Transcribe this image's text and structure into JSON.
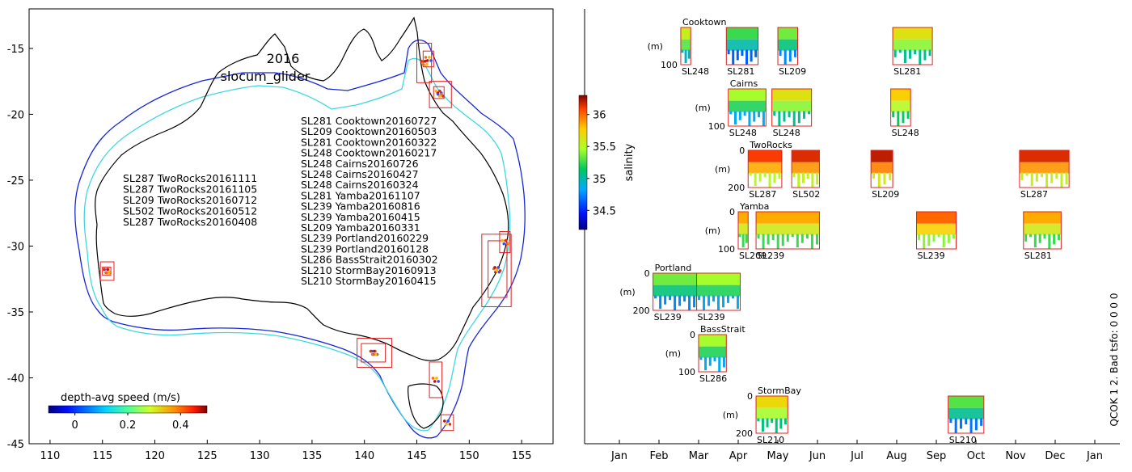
{
  "chart_data": [
    {
      "type": "scatter",
      "title": "2016",
      "subtitle": "slocum_glider",
      "xlim": [
        108,
        158
      ],
      "ylim": [
        -45,
        -12
      ],
      "x_ticks": [
        "110",
        "115",
        "120",
        "125",
        "130",
        "135",
        "140",
        "145",
        "150",
        "155"
      ],
      "y_ticks": [
        "-15",
        "-20",
        "-25",
        "-30",
        "-35",
        "-40",
        "-45"
      ],
      "west_deployments": [
        "SL287 TwoRocks20161111",
        "SL287 TwoRocks20161105",
        "SL209 TwoRocks20160712",
        "SL502 TwoRocks20160512",
        "SL287 TwoRocks20160408"
      ],
      "east_deployments": [
        "SL281 Cooktown20160727",
        "SL209 Cooktown20160503",
        "SL281 Cooktown20160322",
        "SL248 Cooktown20160217",
        "SL248 Cairns20160726",
        "SL248 Cairns20160427",
        "SL248 Cairns20160324",
        "SL281 Yamba20161107",
        "SL239 Yamba20160816",
        "SL239 Yamba20160415",
        "SL209 Yamba20160331",
        "SL239 Portland20160229",
        "SL239 Portland20160128",
        "SL286 BassStrait20160302",
        "SL210 StormBay20160913",
        "SL210 StormBay20160415"
      ],
      "colorbar": {
        "label": "depth-avg speed (m/s)",
        "range": [
          -0.1,
          0.5
        ],
        "ticks": [
          "0",
          "0.2",
          "0.4"
        ]
      },
      "region_boxes": [
        {
          "name": "Cooktown",
          "lon": [
            145.0,
            146.4
          ],
          "lat": [
            -17.6,
            -14.6
          ]
        },
        {
          "name": "Cooktown",
          "lon": [
            145.6,
            146.6
          ],
          "lat": [
            -16.4,
            -15.2
          ]
        },
        {
          "name": "Cairns",
          "lon": [
            146.2,
            148.3
          ],
          "lat": [
            -19.5,
            -17.5
          ]
        },
        {
          "name": "Cairns",
          "lon": [
            146.6,
            147.6
          ],
          "lat": [
            -18.8,
            -17.9
          ]
        },
        {
          "name": "TwoRocks",
          "lon": [
            114.8,
            116.1
          ],
          "lat": [
            -32.6,
            -31.2
          ]
        },
        {
          "name": "TwoRocks",
          "lon": [
            115.0,
            115.8
          ],
          "lat": [
            -32.2,
            -31.6
          ]
        },
        {
          "name": "Yamba",
          "lon": [
            151.2,
            154.0
          ],
          "lat": [
            -34.6,
            -29.1
          ]
        },
        {
          "name": "Yamba",
          "lon": [
            151.8,
            153.6
          ],
          "lat": [
            -33.9,
            -29.6
          ]
        },
        {
          "name": "Yamba",
          "lon": [
            152.9,
            153.9
          ],
          "lat": [
            -30.5,
            -28.9
          ]
        },
        {
          "name": "Portland",
          "lon": [
            139.3,
            142.6
          ],
          "lat": [
            -39.2,
            -37.0
          ]
        },
        {
          "name": "Portland",
          "lon": [
            139.7,
            142.0
          ],
          "lat": [
            -38.8,
            -37.4
          ]
        },
        {
          "name": "BassStrait",
          "lon": [
            146.2,
            147.4
          ],
          "lat": [
            -41.5,
            -38.8
          ]
        },
        {
          "name": "StormBay",
          "lon": [
            147.3,
            148.5
          ],
          "lat": [
            -44.0,
            -42.8
          ]
        }
      ]
    },
    {
      "type": "heatmap",
      "colorbar": {
        "label": "salinity",
        "range": [
          34.2,
          36.3
        ],
        "ticks": [
          "34.5",
          "35",
          "35.5",
          "36"
        ]
      },
      "x_ticks": [
        "Jan",
        "Feb",
        "Mar",
        "Apr",
        "May",
        "Jun",
        "Jul",
        "Aug",
        "Sep",
        "Oct",
        "Nov",
        "Dec",
        "Jan"
      ],
      "side_label": "QCOK 1  2. Bad tsfo: 0  0  0  0",
      "depth_unit": "(m)",
      "regions": [
        {
          "name": "Cooktown",
          "max_depth": "100",
          "zero": "",
          "panels": [
            {
              "glider": "SL248",
              "start": 1.55,
              "end": 1.8,
              "sal": 35.3
            },
            {
              "glider": "SL281",
              "start": 2.7,
              "end": 3.5,
              "sal": 35.0
            },
            {
              "glider": "SL209",
              "start": 4.0,
              "end": 4.5,
              "sal": 35.1
            },
            {
              "glider": "SL281",
              "start": 6.9,
              "end": 7.9,
              "sal": 35.4
            }
          ]
        },
        {
          "name": "Cairns",
          "max_depth": "100",
          "zero": "",
          "panels": [
            {
              "glider": "SL248",
              "start": 2.75,
              "end": 3.7,
              "sal": 35.2
            },
            {
              "glider": "SL248",
              "start": 3.85,
              "end": 4.85,
              "sal": 35.4
            },
            {
              "glider": "SL248",
              "start": 6.85,
              "end": 7.35,
              "sal": 35.5
            }
          ]
        },
        {
          "name": "TwoRocks",
          "max_depth": "200",
          "zero": "0",
          "panels": [
            {
              "glider": "SL287",
              "start": 3.25,
              "end": 4.1,
              "sal": 35.85
            },
            {
              "glider": "SL502",
              "start": 4.35,
              "end": 5.05,
              "sal": 35.9
            },
            {
              "glider": "SL209",
              "start": 6.35,
              "end": 6.9,
              "sal": 35.95
            },
            {
              "glider": "SL287",
              "start": 10.1,
              "end": 11.35,
              "sal": 35.9
            }
          ]
        },
        {
          "name": "Yamba",
          "max_depth": "100",
          "zero": "0",
          "panels": [
            {
              "glider": "SL209",
              "start": 3.0,
              "end": 3.25,
              "sal": 35.6
            },
            {
              "glider": "SL239",
              "start": 3.45,
              "end": 5.05,
              "sal": 35.6
            },
            {
              "glider": "SL239",
              "start": 7.5,
              "end": 8.5,
              "sal": 35.75
            },
            {
              "glider": "SL281",
              "start": 10.2,
              "end": 11.15,
              "sal": 35.6
            }
          ]
        },
        {
          "name": "Portland",
          "max_depth": "200",
          "zero": "0",
          "panels": [
            {
              "glider": "SL239",
              "start": 0.85,
              "end": 1.95,
              "sal": 35.1
            },
            {
              "glider": "SL239",
              "start": 1.95,
              "end": 3.05,
              "sal": 35.2
            }
          ]
        },
        {
          "name": "BassStrait",
          "max_depth": "100",
          "zero": "0",
          "panels": [
            {
              "glider": "SL286",
              "start": 2.0,
              "end": 2.7,
              "sal": 35.2
            }
          ]
        },
        {
          "name": "StormBay",
          "max_depth": "200",
          "zero": "0",
          "panels": [
            {
              "glider": "SL210",
              "start": 3.45,
              "end": 4.25,
              "sal": 35.45
            },
            {
              "glider": "SL210",
              "start": 8.3,
              "end": 9.2,
              "sal": 35.05
            }
          ]
        }
      ]
    }
  ],
  "colors": {
    "box": "#e02020",
    "coast": "#000000",
    "shelf": "#3fd7e0",
    "deep": "#1626d8"
  }
}
